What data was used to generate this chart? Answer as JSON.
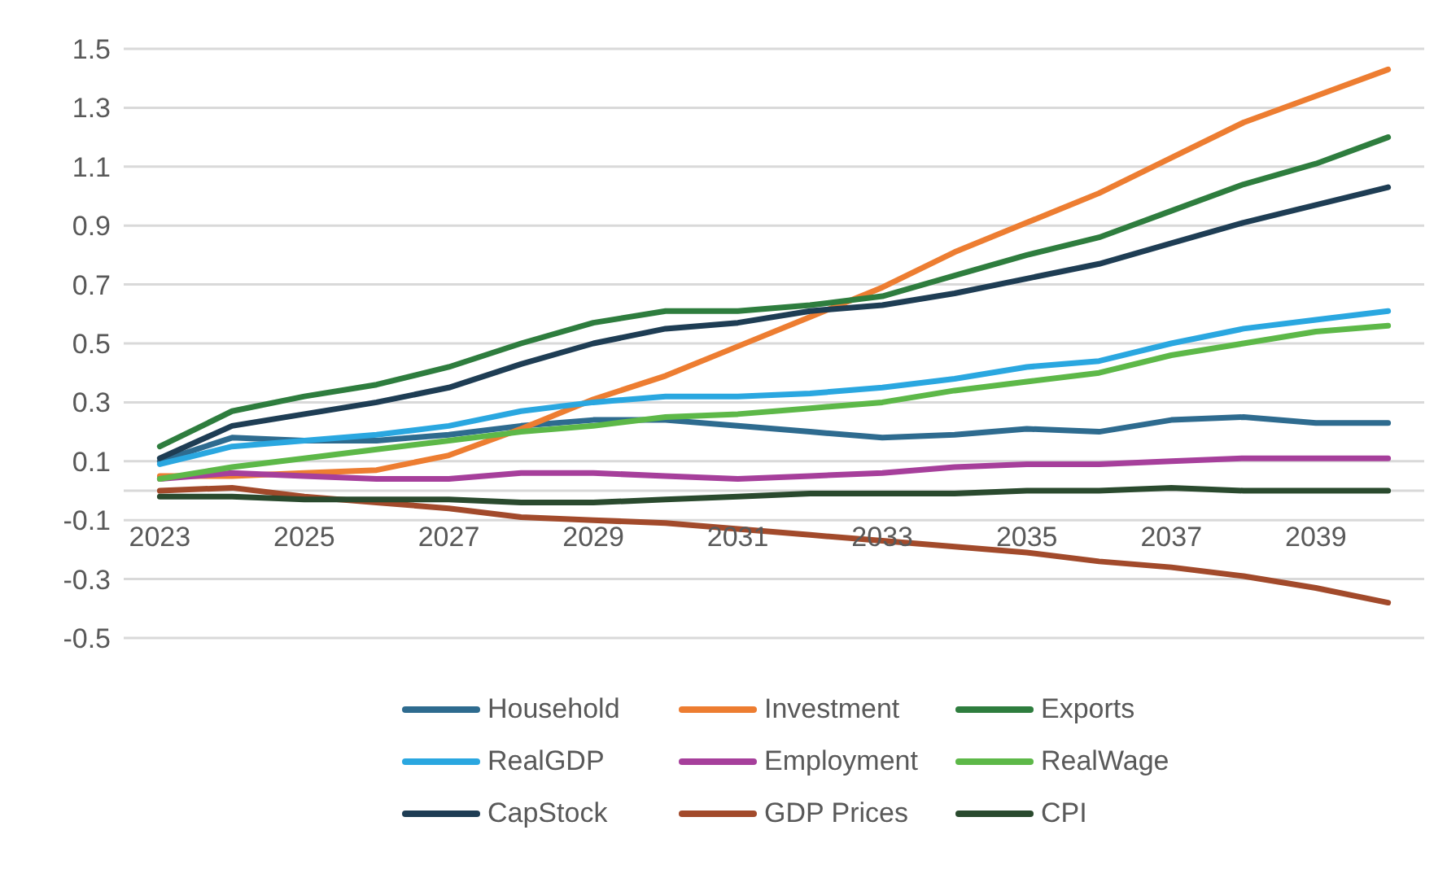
{
  "chart_data": {
    "type": "line",
    "categories": [
      "2023",
      null,
      "2025",
      null,
      "2027",
      null,
      "2029",
      null,
      "2031",
      null,
      "2033",
      null,
      "2035",
      null,
      "2037",
      null,
      "2039",
      null
    ],
    "ylim": [
      -0.5,
      1.5
    ],
    "yticks": [
      -0.5,
      -0.3,
      -0.1,
      {
        "value": 0,
        "label": null
      },
      0.1,
      0.3,
      0.5,
      0.7,
      0.9,
      1.1,
      1.3,
      1.5
    ],
    "grid": "y",
    "legend": "bottom",
    "marker": "none",
    "line_style": "solid",
    "series": [
      {
        "name": "Household",
        "color": "#2e6b8f",
        "values": [
          0.1,
          0.18,
          0.17,
          0.17,
          0.19,
          0.22,
          0.24,
          0.24,
          0.22,
          0.2,
          0.18,
          0.19,
          0.21,
          0.2,
          0.24,
          0.25,
          0.23,
          0.23
        ]
      },
      {
        "name": "Investment",
        "color": "#ed7d31",
        "values": [
          0.05,
          0.05,
          0.06,
          0.07,
          0.12,
          0.21,
          0.31,
          0.39,
          0.49,
          0.59,
          0.69,
          0.81,
          0.91,
          1.01,
          1.13,
          1.25,
          1.34,
          1.43
        ]
      },
      {
        "name": "Exports",
        "color": "#2e7d3e",
        "values": [
          0.15,
          0.27,
          0.32,
          0.36,
          0.42,
          0.5,
          0.57,
          0.61,
          0.61,
          0.63,
          0.66,
          0.73,
          0.8,
          0.86,
          0.95,
          1.04,
          1.11,
          1.2
        ]
      },
      {
        "name": "RealGDP",
        "color": "#2aa7e0",
        "values": [
          0.09,
          0.15,
          0.17,
          0.19,
          0.22,
          0.27,
          0.3,
          0.32,
          0.32,
          0.33,
          0.35,
          0.38,
          0.42,
          0.44,
          0.5,
          0.55,
          0.58,
          0.61
        ]
      },
      {
        "name": "Employment",
        "color": "#a63f9b",
        "values": [
          0.04,
          0.06,
          0.05,
          0.04,
          0.04,
          0.06,
          0.06,
          0.05,
          0.04,
          0.05,
          0.06,
          0.08,
          0.09,
          0.09,
          0.1,
          0.11,
          0.11,
          0.11
        ]
      },
      {
        "name": "RealWage",
        "color": "#5db848",
        "values": [
          0.04,
          0.08,
          0.11,
          0.14,
          0.17,
          0.2,
          0.22,
          0.25,
          0.26,
          0.28,
          0.3,
          0.34,
          0.37,
          0.4,
          0.46,
          0.5,
          0.54,
          0.56
        ]
      },
      {
        "name": "CapStock",
        "color": "#1e3d54",
        "values": [
          0.11,
          0.22,
          0.26,
          0.3,
          0.35,
          0.43,
          0.5,
          0.55,
          0.57,
          0.61,
          0.63,
          0.67,
          0.72,
          0.77,
          0.84,
          0.91,
          0.97,
          1.03
        ]
      },
      {
        "name": "GDP Prices",
        "color": "#a24a2b",
        "values": [
          0.0,
          0.01,
          -0.02,
          -0.04,
          -0.06,
          -0.09,
          -0.1,
          -0.11,
          -0.13,
          -0.15,
          -0.17,
          -0.19,
          -0.21,
          -0.24,
          -0.26,
          -0.29,
          -0.33,
          -0.38
        ]
      },
      {
        "name": "CPI",
        "color": "#2a4a2e",
        "values": [
          -0.02,
          -0.02,
          -0.03,
          -0.03,
          -0.03,
          -0.04,
          -0.04,
          -0.03,
          -0.02,
          -0.01,
          -0.01,
          -0.01,
          0.0,
          0.0,
          0.01,
          0.0,
          0.0,
          0.0
        ]
      }
    ]
  }
}
